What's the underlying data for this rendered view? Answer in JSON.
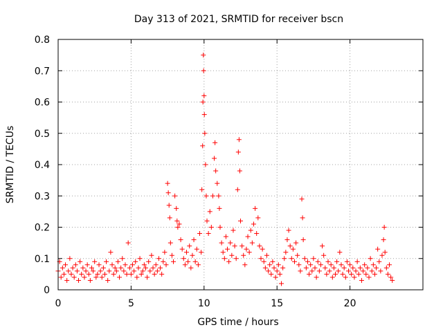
{
  "chart_data": {
    "type": "scatter",
    "title": "Day 313 of 2021, SRMTID for receiver bscn",
    "xlabel": "GPS time / hours",
    "ylabel": "SRMTID / TECUs",
    "xlim": [
      0,
      25
    ],
    "ylim": [
      0,
      0.8
    ],
    "xticks": [
      0,
      5,
      10,
      15,
      20
    ],
    "xtick_labels": [
      "0",
      "5",
      "10",
      "15",
      "20"
    ],
    "yticks": [
      0,
      0.1,
      0.2,
      0.3,
      0.4,
      0.5,
      0.6,
      0.7,
      0.8
    ],
    "ytick_labels": [
      "0",
      "0.1",
      "0.2",
      "0.3",
      "0.4",
      "0.5",
      "0.6",
      "0.7",
      "0.8"
    ],
    "grid": true,
    "marker": "plus",
    "color": "#ff0000",
    "series": [
      {
        "name": "SRMTID",
        "points": [
          [
            0.0,
            0.06
          ],
          [
            0.1,
            0.09
          ],
          [
            0.2,
            0.04
          ],
          [
            0.3,
            0.07
          ],
          [
            0.4,
            0.05
          ],
          [
            0.5,
            0.08
          ],
          [
            0.6,
            0.03
          ],
          [
            0.7,
            0.06
          ],
          [
            0.8,
            0.1
          ],
          [
            0.9,
            0.05
          ],
          [
            1.0,
            0.07
          ],
          [
            1.1,
            0.04
          ],
          [
            1.2,
            0.08
          ],
          [
            1.3,
            0.06
          ],
          [
            1.4,
            0.03
          ],
          [
            1.5,
            0.09
          ],
          [
            1.6,
            0.05
          ],
          [
            1.7,
            0.07
          ],
          [
            1.8,
            0.04
          ],
          [
            1.9,
            0.06
          ],
          [
            2.0,
            0.08
          ],
          [
            2.1,
            0.05
          ],
          [
            2.2,
            0.03
          ],
          [
            2.3,
            0.07
          ],
          [
            2.4,
            0.06
          ],
          [
            2.5,
            0.09
          ],
          [
            2.6,
            0.04
          ],
          [
            2.7,
            0.05
          ],
          [
            2.8,
            0.08
          ],
          [
            2.9,
            0.06
          ],
          [
            3.0,
            0.04
          ],
          [
            3.1,
            0.07
          ],
          [
            3.2,
            0.05
          ],
          [
            3.3,
            0.09
          ],
          [
            3.4,
            0.03
          ],
          [
            3.5,
            0.06
          ],
          [
            3.6,
            0.12
          ],
          [
            3.7,
            0.08
          ],
          [
            3.8,
            0.05
          ],
          [
            3.9,
            0.07
          ],
          [
            4.0,
            0.06
          ],
          [
            4.1,
            0.09
          ],
          [
            4.2,
            0.04
          ],
          [
            4.3,
            0.07
          ],
          [
            4.4,
            0.1
          ],
          [
            4.5,
            0.06
          ],
          [
            4.6,
            0.08
          ],
          [
            4.7,
            0.05
          ],
          [
            4.8,
            0.15
          ],
          [
            4.9,
            0.07
          ],
          [
            5.0,
            0.05
          ],
          [
            5.1,
            0.08
          ],
          [
            5.2,
            0.06
          ],
          [
            5.3,
            0.09
          ],
          [
            5.4,
            0.04
          ],
          [
            5.5,
            0.07
          ],
          [
            5.6,
            0.1
          ],
          [
            5.7,
            0.05
          ],
          [
            5.8,
            0.06
          ],
          [
            5.9,
            0.08
          ],
          [
            6.0,
            0.07
          ],
          [
            6.1,
            0.04
          ],
          [
            6.2,
            0.09
          ],
          [
            6.3,
            0.06
          ],
          [
            6.4,
            0.11
          ],
          [
            6.5,
            0.07
          ],
          [
            6.6,
            0.05
          ],
          [
            6.7,
            0.08
          ],
          [
            6.8,
            0.06
          ],
          [
            6.9,
            0.1
          ],
          [
            7.0,
            0.07
          ],
          [
            7.1,
            0.05
          ],
          [
            7.2,
            0.09
          ],
          [
            7.3,
            0.12
          ],
          [
            7.4,
            0.08
          ],
          [
            7.5,
            0.34
          ],
          [
            7.55,
            0.31
          ],
          [
            7.6,
            0.27
          ],
          [
            7.65,
            0.23
          ],
          [
            7.7,
            0.15
          ],
          [
            7.8,
            0.11
          ],
          [
            7.9,
            0.09
          ],
          [
            8.0,
            0.3
          ],
          [
            8.1,
            0.26
          ],
          [
            8.15,
            0.22
          ],
          [
            8.2,
            0.2
          ],
          [
            8.3,
            0.21
          ],
          [
            8.4,
            0.16
          ],
          [
            8.5,
            0.13
          ],
          [
            8.6,
            0.1
          ],
          [
            8.7,
            0.08
          ],
          [
            8.8,
            0.12
          ],
          [
            8.9,
            0.09
          ],
          [
            9.0,
            0.14
          ],
          [
            9.1,
            0.07
          ],
          [
            9.2,
            0.11
          ],
          [
            9.3,
            0.16
          ],
          [
            9.4,
            0.09
          ],
          [
            9.5,
            0.13
          ],
          [
            9.6,
            0.08
          ],
          [
            9.7,
            0.18
          ],
          [
            9.8,
            0.12
          ],
          [
            9.85,
            0.32
          ],
          [
            9.9,
            0.46
          ],
          [
            9.92,
            0.6
          ],
          [
            9.95,
            0.75
          ],
          [
            9.97,
            0.7
          ],
          [
            10.0,
            0.62
          ],
          [
            10.02,
            0.56
          ],
          [
            10.05,
            0.5
          ],
          [
            10.1,
            0.4
          ],
          [
            10.15,
            0.3
          ],
          [
            10.2,
            0.22
          ],
          [
            10.3,
            0.18
          ],
          [
            10.4,
            0.25
          ],
          [
            10.5,
            0.2
          ],
          [
            10.6,
            0.3
          ],
          [
            10.7,
            0.42
          ],
          [
            10.75,
            0.47
          ],
          [
            10.8,
            0.38
          ],
          [
            10.9,
            0.34
          ],
          [
            11.0,
            0.3
          ],
          [
            11.05,
            0.26
          ],
          [
            11.1,
            0.2
          ],
          [
            11.2,
            0.15
          ],
          [
            11.3,
            0.12
          ],
          [
            11.4,
            0.1
          ],
          [
            11.5,
            0.17
          ],
          [
            11.6,
            0.13
          ],
          [
            11.7,
            0.09
          ],
          [
            11.8,
            0.15
          ],
          [
            11.9,
            0.11
          ],
          [
            12.0,
            0.19
          ],
          [
            12.1,
            0.14
          ],
          [
            12.2,
            0.1
          ],
          [
            12.3,
            0.32
          ],
          [
            12.35,
            0.44
          ],
          [
            12.4,
            0.48
          ],
          [
            12.45,
            0.38
          ],
          [
            12.5,
            0.22
          ],
          [
            12.6,
            0.14
          ],
          [
            12.7,
            0.11
          ],
          [
            12.8,
            0.08
          ],
          [
            12.9,
            0.13
          ],
          [
            13.0,
            0.17
          ],
          [
            13.1,
            0.12
          ],
          [
            13.2,
            0.19
          ],
          [
            13.3,
            0.15
          ],
          [
            13.4,
            0.21
          ],
          [
            13.5,
            0.26
          ],
          [
            13.6,
            0.18
          ],
          [
            13.7,
            0.23
          ],
          [
            13.8,
            0.14
          ],
          [
            13.9,
            0.1
          ],
          [
            14.0,
            0.13
          ],
          [
            14.1,
            0.09
          ],
          [
            14.2,
            0.07
          ],
          [
            14.3,
            0.11
          ],
          [
            14.4,
            0.06
          ],
          [
            14.5,
            0.08
          ],
          [
            14.6,
            0.05
          ],
          [
            14.7,
            0.09
          ],
          [
            14.8,
            0.07
          ],
          [
            14.9,
            0.04
          ],
          [
            15.0,
            0.06
          ],
          [
            15.1,
            0.08
          ],
          [
            15.2,
            0.05
          ],
          [
            15.3,
            0.02
          ],
          [
            15.4,
            0.07
          ],
          [
            15.5,
            0.1
          ],
          [
            15.6,
            0.12
          ],
          [
            15.7,
            0.16
          ],
          [
            15.8,
            0.19
          ],
          [
            15.9,
            0.14
          ],
          [
            16.0,
            0.1
          ],
          [
            16.1,
            0.13
          ],
          [
            16.2,
            0.09
          ],
          [
            16.3,
            0.15
          ],
          [
            16.4,
            0.11
          ],
          [
            16.5,
            0.08
          ],
          [
            16.6,
            0.06
          ],
          [
            16.7,
            0.29
          ],
          [
            16.75,
            0.23
          ],
          [
            16.8,
            0.16
          ],
          [
            16.9,
            0.1
          ],
          [
            17.0,
            0.07
          ],
          [
            17.1,
            0.09
          ],
          [
            17.2,
            0.05
          ],
          [
            17.3,
            0.08
          ],
          [
            17.4,
            0.06
          ],
          [
            17.5,
            0.1
          ],
          [
            17.6,
            0.07
          ],
          [
            17.7,
            0.04
          ],
          [
            17.8,
            0.09
          ],
          [
            17.9,
            0.06
          ],
          [
            18.0,
            0.08
          ],
          [
            18.1,
            0.14
          ],
          [
            18.2,
            0.11
          ],
          [
            18.3,
            0.07
          ],
          [
            18.4,
            0.05
          ],
          [
            18.5,
            0.09
          ],
          [
            18.6,
            0.06
          ],
          [
            18.7,
            0.08
          ],
          [
            18.8,
            0.04
          ],
          [
            18.9,
            0.07
          ],
          [
            19.0,
            0.05
          ],
          [
            19.1,
            0.09
          ],
          [
            19.2,
            0.06
          ],
          [
            19.3,
            0.12
          ],
          [
            19.4,
            0.08
          ],
          [
            19.5,
            0.05
          ],
          [
            19.6,
            0.07
          ],
          [
            19.7,
            0.04
          ],
          [
            19.8,
            0.09
          ],
          [
            19.9,
            0.06
          ],
          [
            20.0,
            0.08
          ],
          [
            20.1,
            0.05
          ],
          [
            20.2,
            0.07
          ],
          [
            20.3,
            0.04
          ],
          [
            20.4,
            0.06
          ],
          [
            20.5,
            0.09
          ],
          [
            20.6,
            0.05
          ],
          [
            20.7,
            0.07
          ],
          [
            20.8,
            0.03
          ],
          [
            20.9,
            0.06
          ],
          [
            21.0,
            0.08
          ],
          [
            21.1,
            0.05
          ],
          [
            21.2,
            0.07
          ],
          [
            21.3,
            0.04
          ],
          [
            21.4,
            0.1
          ],
          [
            21.5,
            0.06
          ],
          [
            21.6,
            0.08
          ],
          [
            21.7,
            0.05
          ],
          [
            21.8,
            0.07
          ],
          [
            21.9,
            0.13
          ],
          [
            22.0,
            0.09
          ],
          [
            22.1,
            0.06
          ],
          [
            22.2,
            0.11
          ],
          [
            22.3,
            0.16
          ],
          [
            22.35,
            0.2
          ],
          [
            22.4,
            0.12
          ],
          [
            22.5,
            0.07
          ],
          [
            22.6,
            0.05
          ],
          [
            22.7,
            0.08
          ],
          [
            22.8,
            0.04
          ],
          [
            22.9,
            0.03
          ]
        ]
      }
    ]
  }
}
